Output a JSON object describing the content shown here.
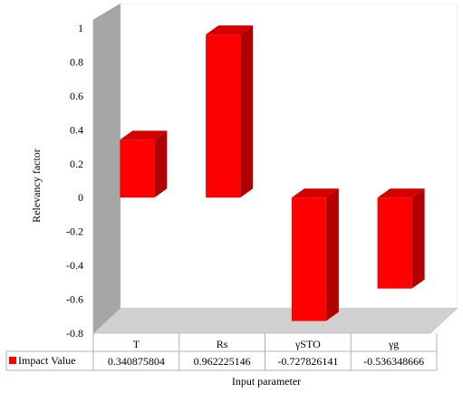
{
  "chart_data": {
    "type": "bar",
    "title": "",
    "xlabel": "Input parameter",
    "ylabel": "Relevancy factor",
    "categories": [
      "T",
      "Rs",
      "γSTO",
      "γg"
    ],
    "series": [
      {
        "name": "Impact Value",
        "values": [
          0.340875804,
          0.962225146,
          -0.727826141,
          -0.536348666
        ],
        "labels": [
          "0.340875804",
          "0.962225146",
          "-0.727826141",
          "-0.536348666"
        ],
        "color": "#ff0000"
      }
    ],
    "ylim": [
      -0.8,
      1
    ],
    "yticks": [
      "-0.8",
      "-0.6",
      "-0.4",
      "-0.2",
      "0",
      "0.2",
      "0.4",
      "0.6",
      "0.8",
      "1"
    ],
    "ytick_values": [
      -0.8,
      -0.6,
      -0.4,
      -0.2,
      0,
      0.2,
      0.4,
      0.6,
      0.8,
      1
    ],
    "grid": false,
    "legend": "data-table",
    "style": "3d-column"
  }
}
